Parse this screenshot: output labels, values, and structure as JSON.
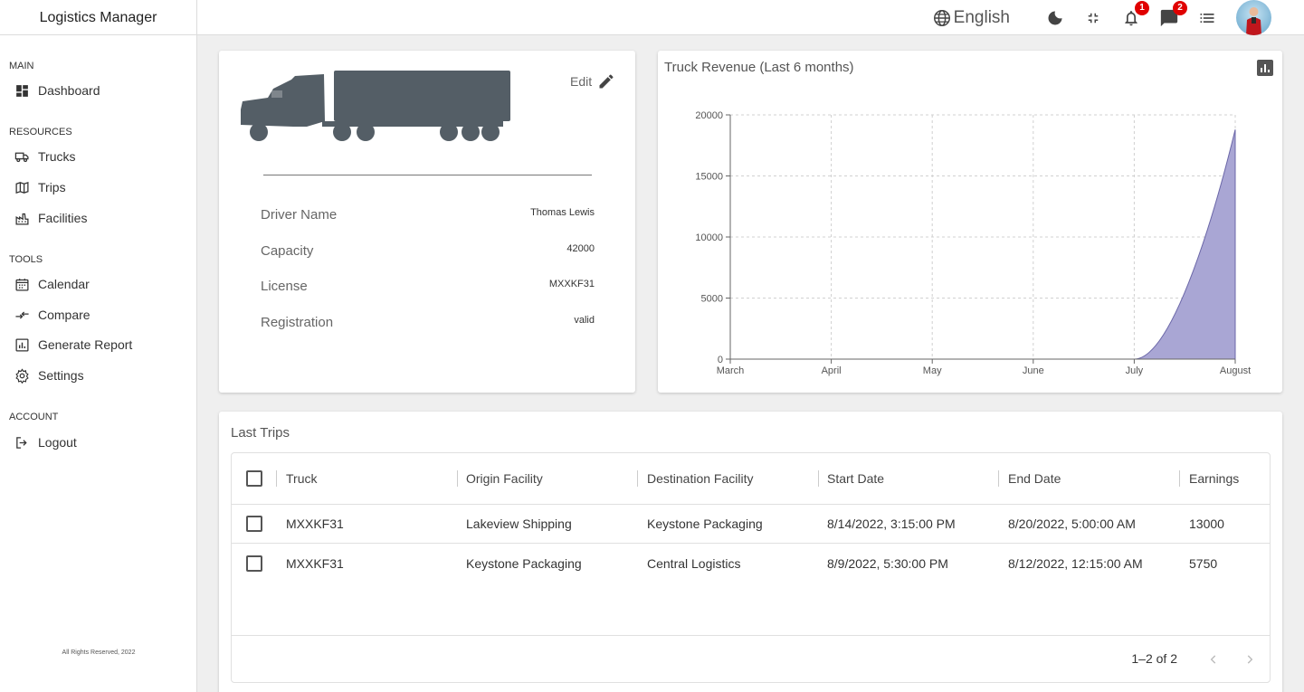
{
  "app": {
    "title": "Logistics Manager"
  },
  "topbar": {
    "language": "English",
    "notifications_count": "1",
    "messages_count": "2",
    "icons": [
      "globe-icon",
      "dark-mode-icon",
      "fullscreen-exit-icon",
      "bell-icon",
      "chat-icon",
      "list-icon",
      "avatar"
    ]
  },
  "sidebar": {
    "sections": [
      {
        "title": "MAIN",
        "items": [
          {
            "label": "Dashboard",
            "icon": "dashboard-icon"
          }
        ]
      },
      {
        "title": "RESOURCES",
        "items": [
          {
            "label": "Trucks",
            "icon": "truck-icon"
          },
          {
            "label": "Trips",
            "icon": "map-icon"
          },
          {
            "label": "Facilities",
            "icon": "factory-icon"
          }
        ]
      },
      {
        "title": "TOOLS",
        "items": [
          {
            "label": "Calendar",
            "icon": "calendar-icon"
          },
          {
            "label": "Compare",
            "icon": "compare-icon"
          },
          {
            "label": "Generate Report",
            "icon": "report-icon"
          },
          {
            "label": "Settings",
            "icon": "settings-icon"
          }
        ]
      },
      {
        "title": "ACCOUNT",
        "items": [
          {
            "label": "Logout",
            "icon": "logout-icon"
          }
        ]
      }
    ],
    "footer": "All Rights Reserved, 2022"
  },
  "truck": {
    "edit_label": "Edit",
    "fields": [
      {
        "label": "Driver Name",
        "value": "Thomas Lewis"
      },
      {
        "label": "Capacity",
        "value": "42000"
      },
      {
        "label": "License",
        "value": "MXXKF31"
      },
      {
        "label": "Registration",
        "value": "valid"
      }
    ]
  },
  "chart_data": {
    "type": "area",
    "title": "Truck Revenue (Last 6 months)",
    "categories": [
      "March",
      "April",
      "May",
      "June",
      "July",
      "August"
    ],
    "values": [
      0,
      0,
      0,
      0,
      0,
      18800
    ],
    "ylim": [
      0,
      20000
    ],
    "yticks": [
      0,
      5000,
      10000,
      15000,
      20000
    ],
    "grid": true,
    "color": "#a9a6d4"
  },
  "trips": {
    "title": "Last Trips",
    "columns": [
      "Truck",
      "Origin Facility",
      "Destination Facility",
      "Start Date",
      "End Date",
      "Earnings"
    ],
    "rows": [
      [
        "MXXKF31",
        "Lakeview Shipping",
        "Keystone Packaging",
        "8/14/2022, 3:15:00 PM",
        "8/20/2022, 5:00:00 AM",
        "13000"
      ],
      [
        "MXXKF31",
        "Keystone Packaging",
        "Central Logistics",
        "8/9/2022, 5:30:00 PM",
        "8/12/2022, 12:15:00 AM",
        "5750"
      ]
    ],
    "pagination": "1–2 of 2"
  }
}
